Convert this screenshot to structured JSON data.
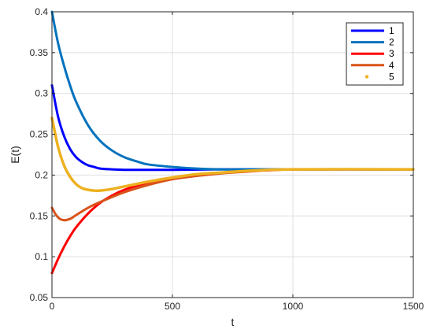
{
  "chart_data": {
    "type": "line",
    "xlabel": "t",
    "ylabel": "E(t)",
    "xlim": [
      0,
      1500
    ],
    "ylim": [
      0.05,
      0.4
    ],
    "xticks": [
      "0",
      "500",
      "1000",
      "1500"
    ],
    "yticks": [
      "0.05",
      "0.1",
      "0.15",
      "0.2",
      "0.25",
      "0.3",
      "0.35",
      "0.4"
    ],
    "grid": true,
    "legend_position": "top-right",
    "series": [
      {
        "name": "1",
        "color": "#0000ff",
        "style": "solid",
        "x": [
          0,
          25,
          50,
          75,
          100,
          125,
          150,
          175,
          200,
          250,
          300,
          400,
          500,
          700,
          1000,
          1500
        ],
        "y": [
          0.31,
          0.272,
          0.248,
          0.232,
          0.222,
          0.216,
          0.212,
          0.21,
          0.208,
          0.207,
          0.2065,
          0.2065,
          0.2065,
          0.207,
          0.207,
          0.207
        ]
      },
      {
        "name": "2",
        "color": "#0072bd",
        "style": "solid",
        "x": [
          0,
          25,
          50,
          75,
          100,
          150,
          200,
          250,
          300,
          350,
          400,
          500,
          600,
          700,
          800,
          1000,
          1500
        ],
        "y": [
          0.4,
          0.362,
          0.334,
          0.31,
          0.29,
          0.261,
          0.242,
          0.23,
          0.222,
          0.217,
          0.213,
          0.21,
          0.208,
          0.207,
          0.207,
          0.207,
          0.207
        ]
      },
      {
        "name": "3",
        "color": "#ff0000",
        "style": "solid",
        "x": [
          0,
          25,
          50,
          75,
          100,
          150,
          200,
          250,
          300,
          400,
          500,
          600,
          700,
          800,
          900,
          1000,
          1200,
          1500
        ],
        "y": [
          0.08,
          0.097,
          0.112,
          0.125,
          0.136,
          0.153,
          0.166,
          0.175,
          0.182,
          0.191,
          0.197,
          0.201,
          0.203,
          0.205,
          0.206,
          0.207,
          0.207,
          0.207
        ]
      },
      {
        "name": "4",
        "color": "#d95319",
        "style": "solid",
        "x": [
          0,
          15,
          30,
          45,
          60,
          80,
          100,
          150,
          200,
          300,
          400,
          500,
          600,
          700,
          800,
          1000,
          1500
        ],
        "y": [
          0.16,
          0.152,
          0.147,
          0.145,
          0.145,
          0.147,
          0.151,
          0.16,
          0.167,
          0.179,
          0.188,
          0.195,
          0.199,
          0.202,
          0.204,
          0.207,
          0.207
        ]
      },
      {
        "name": "5",
        "color": "#edb120",
        "style": "dotted",
        "x": [
          0,
          25,
          50,
          75,
          100,
          125,
          150,
          175,
          200,
          250,
          300,
          400,
          500,
          600,
          700,
          800,
          1000,
          1500
        ],
        "y": [
          0.27,
          0.235,
          0.212,
          0.198,
          0.189,
          0.184,
          0.182,
          0.181,
          0.181,
          0.183,
          0.186,
          0.192,
          0.197,
          0.201,
          0.203,
          0.205,
          0.207,
          0.207
        ]
      }
    ]
  }
}
